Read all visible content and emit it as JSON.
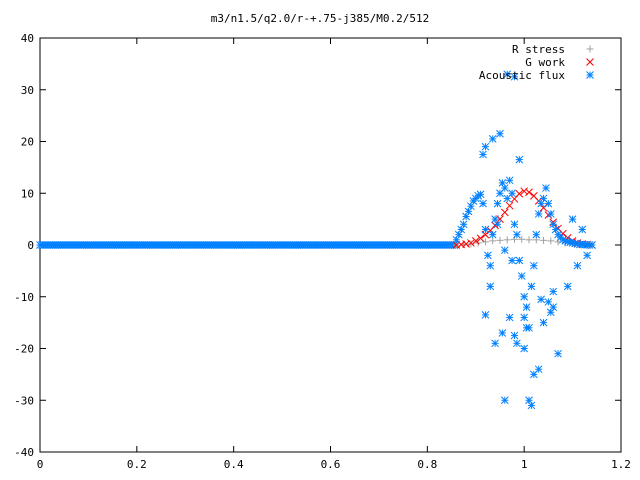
{
  "chart_data": {
    "type": "scatter",
    "title": "m3/n1.5/q2.0/r-+.75-j385/M0.2/512",
    "xlabel": "",
    "ylabel": "",
    "xlim": [
      0,
      1.2
    ],
    "ylim": [
      -40,
      40
    ],
    "x_ticks": [
      "0",
      "0.2",
      "0.4",
      "0.6",
      "0.8",
      "1",
      "1.2"
    ],
    "y_ticks": [
      "40",
      "30",
      "20",
      "10",
      "0",
      "-10",
      "-20",
      "-30",
      "-40"
    ],
    "grid": false,
    "legend_position": "top-right",
    "series": [
      {
        "name": "R stress",
        "marker": "plus",
        "color": "#a0a0a0",
        "x": [
          0.86,
          0.875,
          0.89,
          0.905,
          0.92,
          0.935,
          0.95,
          0.965,
          0.98,
          0.995,
          1.01,
          1.025,
          1.04,
          1.055,
          1.07,
          1.085,
          1.1,
          1.115,
          1.13,
          1.14
        ],
        "y": [
          0,
          0.1,
          0.2,
          0.4,
          0.6,
          0.8,
          0.9,
          1.0,
          1.1,
          1.1,
          1.0,
          1.0,
          0.9,
          0.8,
          0.6,
          0.4,
          0.3,
          0.2,
          0.1,
          0
        ]
      },
      {
        "name": "G work",
        "marker": "cross",
        "color": "#ff0000",
        "x": [
          0.86,
          0.87,
          0.88,
          0.89,
          0.9,
          0.91,
          0.92,
          0.93,
          0.94,
          0.95,
          0.96,
          0.97,
          0.98,
          0.99,
          1.0,
          1.01,
          1.02,
          1.03,
          1.04,
          1.05,
          1.06,
          1.07,
          1.08,
          1.09,
          1.1,
          1.11,
          1.12,
          1.13,
          1.14
        ],
        "y": [
          0,
          0.1,
          0.2,
          0.4,
          0.8,
          1.3,
          2.0,
          2.8,
          3.8,
          5.0,
          6.3,
          7.6,
          8.9,
          9.9,
          10.4,
          10.2,
          9.5,
          8.5,
          7.2,
          5.8,
          4.4,
          3.2,
          2.2,
          1.4,
          0.8,
          0.4,
          0.2,
          0.1,
          0
        ]
      },
      {
        "name": "Acoustic flux",
        "marker": "star",
        "color": "#0080ff",
        "x": [
          0.86,
          0.865,
          0.87,
          0.875,
          0.88,
          0.885,
          0.89,
          0.895,
          0.9,
          0.905,
          0.91,
          0.915,
          0.92,
          0.925,
          0.93,
          0.935,
          0.94,
          0.945,
          0.95,
          0.955,
          0.96,
          0.965,
          0.97,
          0.975,
          0.98,
          0.985,
          0.99,
          0.995,
          1.0,
          1.005,
          1.01,
          1.015,
          1.02,
          1.025,
          1.03,
          1.035,
          1.04,
          1.045,
          1.05,
          1.055,
          1.06,
          1.065,
          1.07,
          1.075,
          1.08,
          1.085,
          1.09,
          1.095,
          1.1,
          1.105,
          1.11,
          1.115,
          1.12,
          1.125,
          1.13,
          1.135,
          1.14,
          0.92,
          0.935,
          0.95,
          0.965,
          0.98,
          0.99,
          1.01,
          1.04,
          1.06,
          1.09,
          1.11,
          1.13,
          0.915,
          0.945,
          0.96,
          0.975,
          1.0,
          1.02,
          1.05,
          1.07,
          1.1,
          1.12,
          0.93,
          0.955,
          0.97,
          0.985,
          1.005,
          1.03,
          1.055,
          0.92,
          0.94,
          0.96,
          0.98,
          1.0,
          1.015,
          1.035,
          1.06
        ],
        "y": [
          1.0,
          2.0,
          3.0,
          4.0,
          5.5,
          6.5,
          7.5,
          8.5,
          9.0,
          9.5,
          9.8,
          8.0,
          3.0,
          -2.0,
          -4.0,
          2.0,
          5.0,
          8.0,
          10.0,
          12.0,
          11.0,
          9.0,
          12.5,
          10.0,
          4.0,
          2.0,
          -3.0,
          -6.0,
          -10.0,
          -12.0,
          -16.0,
          -8.0,
          -4.0,
          2.0,
          6.0,
          8.0,
          9.0,
          11.0,
          8.0,
          6.0,
          4.0,
          3.0,
          2.0,
          1.5,
          1.0,
          0.8,
          0.6,
          0.5,
          0.4,
          0.3,
          0.2,
          0.1,
          0.1,
          0.05,
          0.02,
          0.01,
          0,
          19.0,
          20.5,
          21.5,
          33.0,
          32.5,
          16.5,
          -30.0,
          -15.0,
          -12.0,
          -8.0,
          -4.0,
          -2.0,
          17.5,
          4.0,
          -1.0,
          -3.0,
          -20.0,
          -25.0,
          -11.0,
          -21.0,
          5.0,
          3.0,
          -8.0,
          -17.0,
          -14.0,
          -19.0,
          -16.0,
          -24.0,
          -13.0,
          -13.5,
          -19.0,
          -30.0,
          -17.5,
          -14.0,
          -31.0,
          -10.5,
          -9.0
        ]
      }
    ]
  }
}
